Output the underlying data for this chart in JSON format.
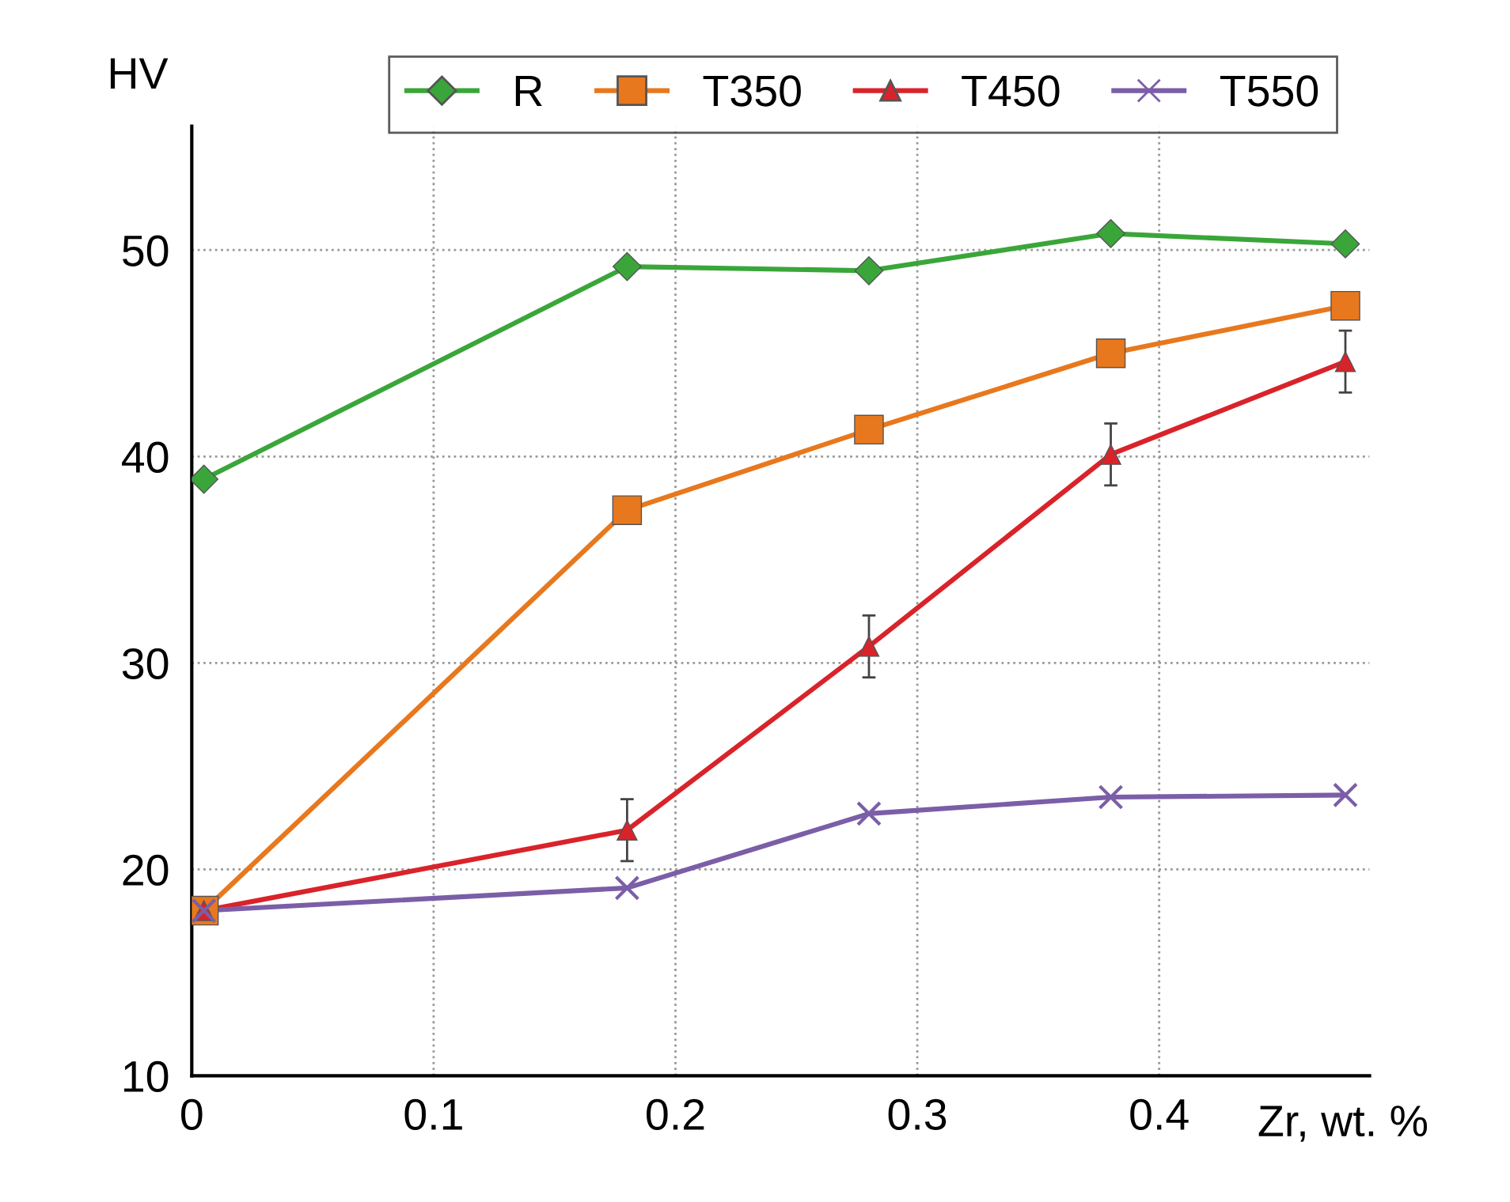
{
  "chart_data": {
    "type": "line",
    "ylabel": "HV",
    "xlabel": "Zr, wt. %",
    "xlim": [
      0,
      0.487
    ],
    "xticks": [
      0,
      0.1,
      0.2,
      0.3,
      0.4
    ],
    "ylim": [
      10,
      56
    ],
    "yticks": [
      10,
      20,
      30,
      40,
      50
    ],
    "grid": true,
    "legend": "top",
    "line_style": "solid",
    "x": [
      0.005,
      0.18,
      0.28,
      0.38,
      0.477
    ],
    "series": [
      {
        "name": "R",
        "color": "#3aa63a",
        "marker": "diamond",
        "values": [
          38.9,
          49.2,
          49.0,
          50.8,
          50.3
        ]
      },
      {
        "name": "T350",
        "color": "#e8781e",
        "marker": "square",
        "values": [
          18.0,
          37.4,
          41.3,
          45.0,
          47.3
        ]
      },
      {
        "name": "T450",
        "color": "#d9232a",
        "marker": "triangle",
        "values": [
          18.0,
          21.9,
          30.8,
          40.1,
          44.6
        ],
        "errors": [
          null,
          1.5,
          1.5,
          1.5,
          1.5
        ]
      },
      {
        "name": "T550",
        "color": "#7b5ea7",
        "marker": "cross",
        "values": [
          18.0,
          19.1,
          22.7,
          23.5,
          23.6
        ]
      }
    ]
  }
}
